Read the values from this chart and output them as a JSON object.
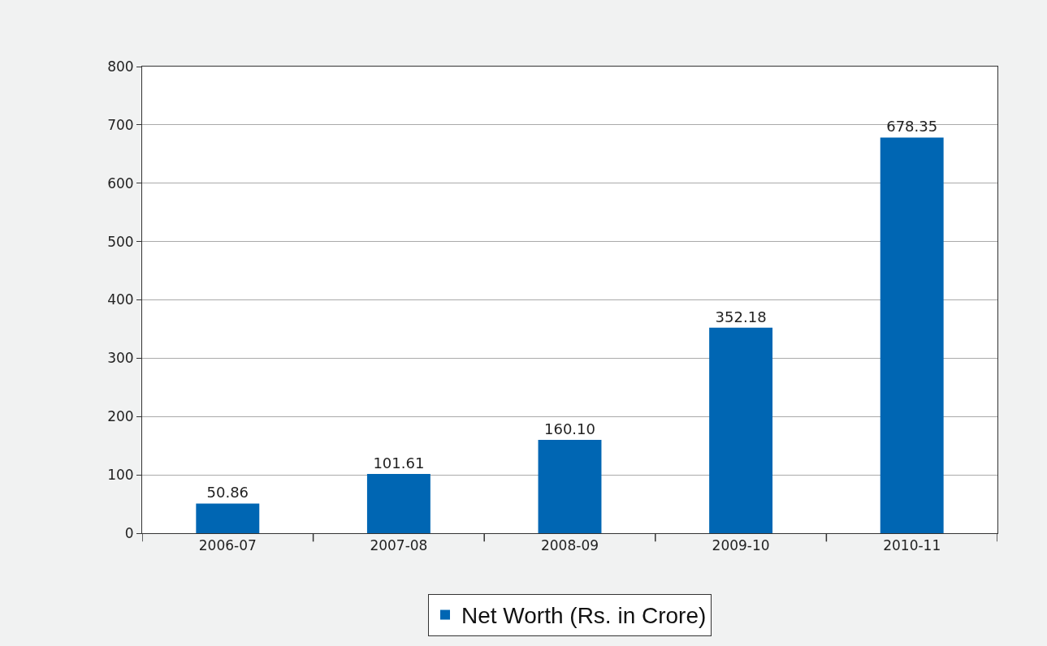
{
  "chart_data": {
    "type": "bar",
    "categories": [
      "2006-07",
      "2007-08",
      "2008-09",
      "2009-10",
      "2010-11"
    ],
    "series": [
      {
        "name": "Net Worth (Rs. in Crore)",
        "color": "#0066b3",
        "values": [
          50.86,
          101.61,
          160.1,
          352.18,
          678.35
        ],
        "value_labels": [
          "50.86",
          "101.61",
          "160.10",
          "352.18",
          "678.35"
        ]
      }
    ],
    "ylim": [
      0,
      800
    ],
    "yticks": [
      0,
      100,
      200,
      300,
      400,
      500,
      600,
      700,
      800
    ],
    "grid": "y",
    "legend": "bottom"
  }
}
